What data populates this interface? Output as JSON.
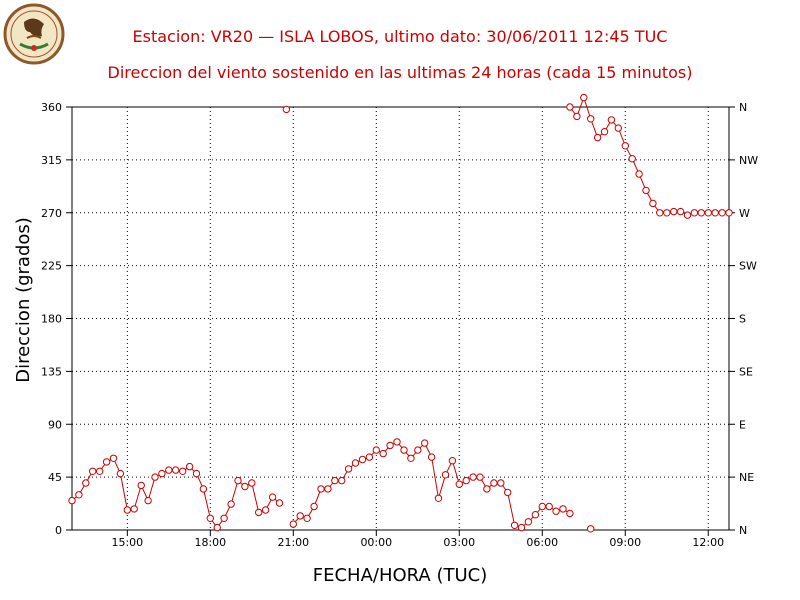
{
  "header": {
    "title_line1": "Estacion: VR20 — ISLA LOBOS, ultimo dato: 30/06/2011 12:45 TUC",
    "title_line2": "Direccion del viento sostenido en las ultimas 24 horas (cada 15 minutos)"
  },
  "logo": {
    "icon": "mexico-coat-of-arms-seal-icon"
  },
  "colors": {
    "series": "#cc0000",
    "title": "#cc0000",
    "grid": "#000000"
  },
  "chart_data": {
    "type": "scatter",
    "title": "Direccion del viento sostenido en las ultimas 24 horas (cada 15 minutos)",
    "xlabel": "FECHA/HORA (TUC)",
    "ylabel": "Direccion (grados)",
    "xlim": [
      13.0,
      12.75
    ],
    "ylim": [
      0,
      360
    ],
    "grid": true,
    "x_ticks": [
      {
        "hour": 15,
        "label": "15:00"
      },
      {
        "hour": 18,
        "label": "18:00"
      },
      {
        "hour": 21,
        "label": "21:00"
      },
      {
        "hour": 0,
        "label": "00:00"
      },
      {
        "hour": 3,
        "label": "03:00"
      },
      {
        "hour": 6,
        "label": "06:00"
      },
      {
        "hour": 9,
        "label": "09:00"
      },
      {
        "hour": 12,
        "label": "12:00"
      }
    ],
    "y_ticks": [
      0,
      45,
      90,
      135,
      180,
      225,
      270,
      315,
      360
    ],
    "y_ticks_right": [
      "N",
      "NE",
      "E",
      "SE",
      "S",
      "SW",
      "W",
      "NW",
      "N"
    ],
    "series": [
      {
        "connected": true,
        "points": [
          [
            "13:00",
            25
          ],
          [
            "13:15",
            30
          ],
          [
            "13:30",
            40
          ],
          [
            "13:45",
            50
          ],
          [
            "14:00",
            50
          ],
          [
            "14:15",
            58
          ],
          [
            "14:30",
            61
          ],
          [
            "14:45",
            48
          ],
          [
            "15:00",
            17
          ],
          [
            "15:15",
            18
          ],
          [
            "15:30",
            38
          ],
          [
            "15:45",
            25
          ],
          [
            "16:00",
            45
          ],
          [
            "16:15",
            48
          ],
          [
            "16:30",
            51
          ],
          [
            "16:45",
            51
          ],
          [
            "17:00",
            50
          ],
          [
            "17:15",
            54
          ],
          [
            "17:30",
            48
          ],
          [
            "17:45",
            35
          ],
          [
            "18:00",
            10
          ],
          [
            "18:15",
            2
          ],
          [
            "18:30",
            10
          ],
          [
            "18:45",
            22
          ],
          [
            "19:00",
            42
          ],
          [
            "19:15",
            37
          ],
          [
            "19:30",
            40
          ],
          [
            "19:45",
            15
          ],
          [
            "20:00",
            17
          ],
          [
            "20:15",
            28
          ],
          [
            "20:30",
            23
          ]
        ]
      },
      {
        "connected": false,
        "points": [
          [
            "20:45",
            358
          ]
        ]
      },
      {
        "connected": true,
        "points": [
          [
            "21:00",
            5
          ],
          [
            "21:15",
            12
          ],
          [
            "21:30",
            10
          ],
          [
            "21:45",
            20
          ],
          [
            "22:00",
            35
          ],
          [
            "22:15",
            35
          ],
          [
            "22:30",
            42
          ],
          [
            "22:45",
            42
          ],
          [
            "23:00",
            52
          ],
          [
            "23:15",
            57
          ],
          [
            "23:30",
            60
          ],
          [
            "23:45",
            62
          ],
          [
            "00:00",
            68
          ],
          [
            "00:15",
            65
          ],
          [
            "00:30",
            72
          ],
          [
            "00:45",
            75
          ],
          [
            "01:00",
            68
          ],
          [
            "01:15",
            61
          ],
          [
            "01:30",
            68
          ],
          [
            "01:45",
            74
          ],
          [
            "02:00",
            62
          ],
          [
            "02:15",
            27
          ],
          [
            "02:30",
            47
          ],
          [
            "02:45",
            59
          ],
          [
            "03:00",
            39
          ],
          [
            "03:15",
            42
          ],
          [
            "03:30",
            45
          ],
          [
            "03:45",
            45
          ],
          [
            "04:00",
            35
          ],
          [
            "04:15",
            40
          ],
          [
            "04:30",
            40
          ],
          [
            "04:45",
            32
          ],
          [
            "05:00",
            4
          ],
          [
            "05:15",
            2
          ],
          [
            "05:30",
            7
          ],
          [
            "05:45",
            13
          ],
          [
            "06:00",
            20
          ],
          [
            "06:15",
            20
          ],
          [
            "06:30",
            16
          ],
          [
            "06:45",
            18
          ],
          [
            "07:00",
            14
          ]
        ]
      },
      {
        "connected": false,
        "points": [
          [
            "07:45",
            1
          ]
        ]
      },
      {
        "connected": true,
        "points": [
          [
            "07:00",
            360
          ],
          [
            "07:15",
            352
          ],
          [
            "07:30",
            368
          ],
          [
            "07:45",
            350
          ],
          [
            "08:00",
            334
          ],
          [
            "08:15",
            339
          ],
          [
            "08:30",
            349
          ],
          [
            "08:45",
            342
          ],
          [
            "09:00",
            327
          ],
          [
            "09:15",
            316
          ],
          [
            "09:30",
            303
          ],
          [
            "09:45",
            289
          ],
          [
            "10:00",
            278
          ],
          [
            "10:15",
            270
          ],
          [
            "10:30",
            270
          ],
          [
            "10:45",
            271
          ],
          [
            "11:00",
            271
          ],
          [
            "11:15",
            268
          ],
          [
            "11:30",
            270
          ],
          [
            "11:45",
            270
          ],
          [
            "12:00",
            270
          ],
          [
            "12:15",
            270
          ],
          [
            "12:30",
            270
          ],
          [
            "12:45",
            270
          ]
        ]
      }
    ]
  }
}
